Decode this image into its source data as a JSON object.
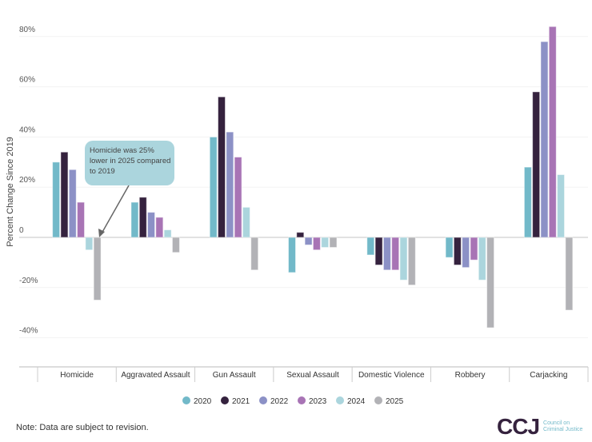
{
  "chart_data": {
    "type": "bar",
    "ylabel": "Percent Change Since 2019",
    "ylim": [
      -50,
      85
    ],
    "yticks": [
      80,
      60,
      40,
      20,
      0,
      -20,
      -40
    ],
    "ytick_labels": [
      "80%",
      "60%",
      "40%",
      "20%",
      "0",
      "-20%",
      "-40%"
    ],
    "grid": true,
    "legend_placement": "bottom",
    "categories": [
      "Homicide",
      "Aggravated Assault",
      "Gun Assault",
      "Sexual Assault",
      "Domestic Violence",
      "Robbery",
      "Carjacking"
    ],
    "series": [
      {
        "name": "2020",
        "color": "#72b9c9",
        "values": [
          30,
          14,
          40,
          -14,
          -7,
          -8,
          28
        ]
      },
      {
        "name": "2021",
        "color": "#35223e",
        "values": [
          34,
          16,
          56,
          2,
          -11,
          -11,
          58
        ]
      },
      {
        "name": "2022",
        "color": "#8c91c6",
        "values": [
          27,
          10,
          42,
          -3,
          -13,
          -12,
          78
        ]
      },
      {
        "name": "2023",
        "color": "#a874b5",
        "values": [
          14,
          8,
          32,
          -5,
          -13,
          -9,
          84
        ]
      },
      {
        "name": "2024",
        "color": "#abd5dd",
        "values": [
          -5,
          3,
          12,
          -4,
          -17,
          -17,
          25
        ]
      },
      {
        "name": "2025",
        "color": "#b2b2b6",
        "values": [
          -25,
          -6,
          -13,
          -4,
          -19,
          -36,
          -29
        ]
      }
    ],
    "annotation": "Homicide was 25% lower in 2025 compared to 2019"
  },
  "note": "Note: Data are subject to revision.",
  "logo": {
    "mark": "CCJ",
    "text": "Council on Criminal Justice"
  }
}
